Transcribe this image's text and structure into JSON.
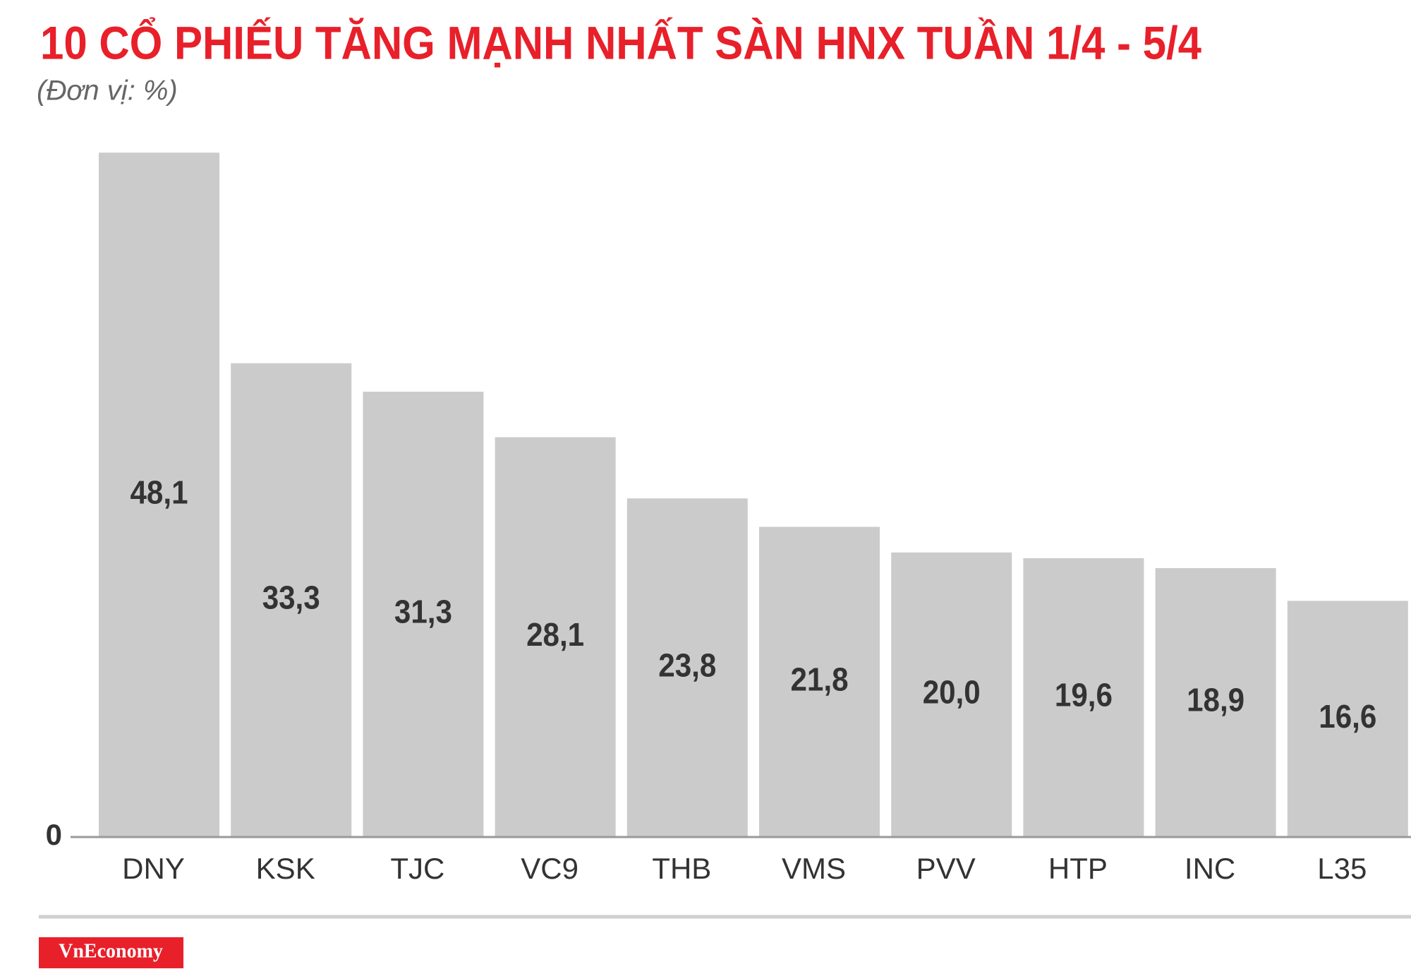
{
  "chart_data": {
    "type": "bar",
    "title": "10 CỔ PHIẾU TĂNG MẠNH NHẤT SÀN HNX TUẦN 1/4 - 5/4",
    "subtitle": "(Đơn vị: %)",
    "categories": [
      "DNY",
      "KSK",
      "TJC",
      "VC9",
      "THB",
      "VMS",
      "PVV",
      "HTP",
      "INC",
      "L35"
    ],
    "values": [
      48.1,
      33.3,
      31.3,
      28.1,
      23.8,
      21.8,
      20.0,
      19.6,
      18.9,
      16.6
    ],
    "value_labels": [
      "48,1",
      "33,3",
      "31,3",
      "28,1",
      "23,8",
      "21,8",
      "20,0",
      "19,6",
      "18,9",
      "16,6"
    ],
    "color": "#cccbcb",
    "ylim": [
      0,
      50
    ],
    "yticks": [
      0
    ],
    "grid": false,
    "source": "VnEconomy"
  }
}
